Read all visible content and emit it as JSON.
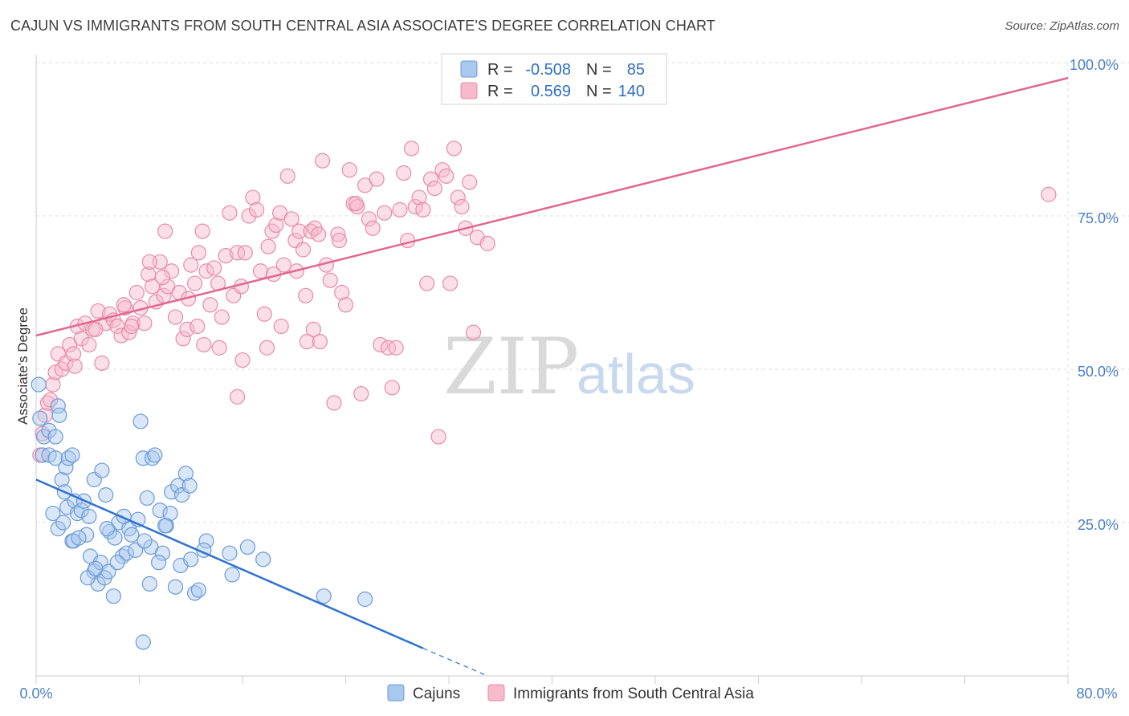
{
  "header": {
    "title": "CAJUN VS IMMIGRANTS FROM SOUTH CENTRAL ASIA ASSOCIATE'S DEGREE CORRELATION CHART",
    "source": "Source: ZipAtlas.com"
  },
  "legend": {
    "rows": [
      {
        "r_label": "R =",
        "r_value": "-0.508",
        "n_label": "N =",
        "n_value": "85"
      },
      {
        "r_label": "R =",
        "r_value": "0.569",
        "n_label": "N =",
        "n_value": "140"
      }
    ]
  },
  "watermark": {
    "part1": "ZIP",
    "part2": "atlas"
  },
  "colors": {
    "cajun_fill": "#a9c8f0",
    "cajun_stroke": "#6a9ad6",
    "cajun_line": "#2f72cf",
    "imm_fill": "#f7b9cc",
    "imm_stroke": "#e88aa8",
    "imm_line": "#e06890",
    "tick": "#4a7fc4",
    "grid": "#dddddd"
  },
  "chart_data": {
    "type": "scatter",
    "title": "CAJUN VS IMMIGRANTS FROM SOUTH CENTRAL ASIA ASSOCIATE'S DEGREE CORRELATION CHART",
    "xlabel": "",
    "ylabel": "Associate's Degree",
    "xlim": [
      0,
      80
    ],
    "ylim": [
      0,
      100
    ],
    "x_tick_labels": [
      "0.0%",
      "80.0%"
    ],
    "y_tick_labels": [
      "25.0%",
      "50.0%",
      "75.0%",
      "100.0%"
    ],
    "y_ticks": [
      25,
      50,
      75,
      100
    ],
    "grid": true,
    "legend_position": "top-center",
    "series": [
      {
        "name": "Cajuns",
        "r": -0.508,
        "n": 85,
        "trend": {
          "x": [
            0,
            30
          ],
          "y": [
            32.0,
            4.5
          ],
          "dashed_to": [
            35,
            0
          ]
        },
        "points": [
          [
            0.2,
            47.5
          ],
          [
            0.3,
            42
          ],
          [
            0.5,
            36
          ],
          [
            0.6,
            39
          ],
          [
            1.0,
            40
          ],
          [
            1.0,
            36
          ],
          [
            1.5,
            35.5
          ],
          [
            1.5,
            39
          ],
          [
            1.7,
            44
          ],
          [
            1.8,
            42.5
          ],
          [
            2.0,
            32
          ],
          [
            2.2,
            30
          ],
          [
            2.3,
            34
          ],
          [
            2.5,
            35.5
          ],
          [
            2.8,
            36
          ],
          [
            1.3,
            26.5
          ],
          [
            1.7,
            24
          ],
          [
            2.1,
            25
          ],
          [
            2.4,
            27.5
          ],
          [
            2.8,
            22
          ],
          [
            3.0,
            28.5
          ],
          [
            3.2,
            26.5
          ],
          [
            3.5,
            27
          ],
          [
            3.7,
            28.5
          ],
          [
            3.9,
            23
          ],
          [
            4.1,
            26
          ],
          [
            2.9,
            22
          ],
          [
            3.3,
            22.5
          ],
          [
            4.5,
            32
          ],
          [
            5.1,
            33.5
          ],
          [
            5.4,
            29.5
          ],
          [
            5.7,
            23.5
          ],
          [
            6.1,
            22.5
          ],
          [
            6.4,
            25
          ],
          [
            6.7,
            19.5
          ],
          [
            7.0,
            20
          ],
          [
            7.2,
            24
          ],
          [
            7.4,
            23
          ],
          [
            7.7,
            20.5
          ],
          [
            4.2,
            19.5
          ],
          [
            4.5,
            17
          ],
          [
            4.8,
            15
          ],
          [
            5.0,
            18.5
          ],
          [
            5.3,
            16
          ],
          [
            5.6,
            17
          ],
          [
            6.0,
            13
          ],
          [
            6.3,
            18.5
          ],
          [
            4.0,
            16
          ],
          [
            4.6,
            17.5
          ],
          [
            8.1,
            41.5
          ],
          [
            8.3,
            35.5
          ],
          [
            8.6,
            29
          ],
          [
            9.0,
            35.5
          ],
          [
            9.2,
            36
          ],
          [
            9.6,
            27
          ],
          [
            10.1,
            24.5
          ],
          [
            10.5,
            30
          ],
          [
            11.0,
            31
          ],
          [
            11.3,
            29.5
          ],
          [
            11.6,
            33
          ],
          [
            11.9,
            31
          ],
          [
            10.4,
            26.5
          ],
          [
            8.9,
            21
          ],
          [
            8.4,
            22
          ],
          [
            9.8,
            20
          ],
          [
            10.0,
            24.5
          ],
          [
            9.5,
            18.5
          ],
          [
            11.2,
            18
          ],
          [
            13.2,
            22
          ],
          [
            15.0,
            20
          ],
          [
            15.2,
            16.5
          ],
          [
            16.4,
            21
          ],
          [
            17.6,
            19
          ],
          [
            8.8,
            15
          ],
          [
            10.8,
            14.5
          ],
          [
            12.3,
            13.5
          ],
          [
            12.6,
            14
          ],
          [
            22.3,
            13
          ],
          [
            25.5,
            12.5
          ],
          [
            8.3,
            5.5
          ],
          [
            13.0,
            20.5
          ],
          [
            12.0,
            19.0
          ],
          [
            7.9,
            25.5
          ],
          [
            5.5,
            24.0
          ],
          [
            6.8,
            26.0
          ]
        ]
      },
      {
        "name": "Immigrants from South Central Asia",
        "r": 0.569,
        "n": 140,
        "trend": {
          "x": [
            0,
            80
          ],
          "y": [
            55.5,
            97.5
          ]
        },
        "points": [
          [
            0.3,
            36
          ],
          [
            0.5,
            39.5
          ],
          [
            0.7,
            42.5
          ],
          [
            0.9,
            44.5
          ],
          [
            1.1,
            45
          ],
          [
            1.3,
            47.5
          ],
          [
            1.5,
            49.5
          ],
          [
            1.7,
            52.5
          ],
          [
            2.0,
            50
          ],
          [
            2.3,
            51
          ],
          [
            2.6,
            54
          ],
          [
            2.9,
            52.5
          ],
          [
            3.2,
            57
          ],
          [
            3.5,
            55
          ],
          [
            3.8,
            57.5
          ],
          [
            4.1,
            54
          ],
          [
            4.4,
            56.5
          ],
          [
            4.8,
            59.5
          ],
          [
            5.1,
            51
          ],
          [
            5.4,
            57.5
          ],
          [
            5.7,
            59
          ],
          [
            6.0,
            58
          ],
          [
            6.3,
            57
          ],
          [
            6.6,
            55.5
          ],
          [
            6.9,
            60
          ],
          [
            7.2,
            56
          ],
          [
            7.5,
            57.5
          ],
          [
            7.8,
            62.5
          ],
          [
            8.1,
            60
          ],
          [
            8.4,
            57.5
          ],
          [
            8.7,
            65.5
          ],
          [
            9.0,
            63.5
          ],
          [
            9.3,
            61
          ],
          [
            9.6,
            67.5
          ],
          [
            9.9,
            62
          ],
          [
            10.2,
            63.5
          ],
          [
            10.5,
            66
          ],
          [
            10.8,
            58.5
          ],
          [
            11.1,
            62.5
          ],
          [
            11.4,
            55
          ],
          [
            11.7,
            56.5
          ],
          [
            12.0,
            67
          ],
          [
            12.3,
            64
          ],
          [
            12.6,
            69
          ],
          [
            12.9,
            72.5
          ],
          [
            13.2,
            66
          ],
          [
            13.5,
            60.5
          ],
          [
            13.8,
            66.5
          ],
          [
            14.1,
            64
          ],
          [
            14.4,
            58.5
          ],
          [
            14.7,
            68.5
          ],
          [
            15.0,
            75.5
          ],
          [
            15.3,
            62
          ],
          [
            15.6,
            69
          ],
          [
            15.9,
            63.5
          ],
          [
            16.2,
            69
          ],
          [
            16.5,
            75
          ],
          [
            16.8,
            78
          ],
          [
            17.1,
            76
          ],
          [
            17.4,
            66
          ],
          [
            17.7,
            59
          ],
          [
            18.0,
            70
          ],
          [
            18.3,
            72.5
          ],
          [
            18.6,
            73.5
          ],
          [
            18.9,
            75.5
          ],
          [
            19.2,
            67
          ],
          [
            19.5,
            81.5
          ],
          [
            19.8,
            74.5
          ],
          [
            20.1,
            71
          ],
          [
            20.4,
            72.5
          ],
          [
            20.7,
            69.5
          ],
          [
            21.0,
            54.5
          ],
          [
            21.3,
            72.5
          ],
          [
            21.6,
            73
          ],
          [
            21.9,
            72
          ],
          [
            22.2,
            84
          ],
          [
            22.5,
            67
          ],
          [
            22.8,
            64.5
          ],
          [
            23.1,
            44.5
          ],
          [
            23.4,
            72
          ],
          [
            23.7,
            62.5
          ],
          [
            24.0,
            60.5
          ],
          [
            24.3,
            82.5
          ],
          [
            24.6,
            77
          ],
          [
            24.9,
            76.5
          ],
          [
            25.2,
            46
          ],
          [
            25.5,
            80
          ],
          [
            25.8,
            74.5
          ],
          [
            26.1,
            73
          ],
          [
            26.4,
            81
          ],
          [
            26.7,
            54
          ],
          [
            27.0,
            75.5
          ],
          [
            27.3,
            53.5
          ],
          [
            27.6,
            47
          ],
          [
            27.9,
            53.5
          ],
          [
            28.2,
            76
          ],
          [
            28.5,
            82
          ],
          [
            28.8,
            71
          ],
          [
            29.1,
            86
          ],
          [
            29.4,
            76.5
          ],
          [
            29.7,
            78
          ],
          [
            30.0,
            76
          ],
          [
            30.3,
            64
          ],
          [
            30.6,
            81
          ],
          [
            30.9,
            79.5
          ],
          [
            31.2,
            39
          ],
          [
            31.5,
            82.5
          ],
          [
            31.8,
            81.5
          ],
          [
            32.1,
            64
          ],
          [
            32.4,
            86
          ],
          [
            32.7,
            78
          ],
          [
            33.0,
            76.5
          ],
          [
            33.3,
            73
          ],
          [
            33.6,
            80.5
          ],
          [
            33.9,
            56
          ],
          [
            34.2,
            71.5
          ],
          [
            35.0,
            70.5
          ],
          [
            78.5,
            78.5
          ],
          [
            10.0,
            72.5
          ],
          [
            6.8,
            60.5
          ],
          [
            3.0,
            50.5
          ],
          [
            4.6,
            56.5
          ],
          [
            7.4,
            57
          ],
          [
            8.8,
            67.5
          ],
          [
            9.8,
            65
          ],
          [
            11.8,
            61.5
          ],
          [
            14.2,
            53.5
          ],
          [
            16.0,
            51.5
          ],
          [
            17.9,
            53.5
          ],
          [
            19.0,
            57
          ],
          [
            20.2,
            66
          ],
          [
            20.9,
            62
          ],
          [
            22.0,
            54.5
          ],
          [
            15.6,
            45.5
          ],
          [
            12.5,
            57
          ],
          [
            13.0,
            54
          ],
          [
            18.4,
            65.5
          ],
          [
            21.5,
            56.5
          ],
          [
            23.5,
            71
          ],
          [
            24.8,
            77
          ]
        ]
      }
    ]
  },
  "bottom_legend": [
    {
      "label": "Cajuns"
    },
    {
      "label": "Immigrants from South Central Asia"
    }
  ]
}
